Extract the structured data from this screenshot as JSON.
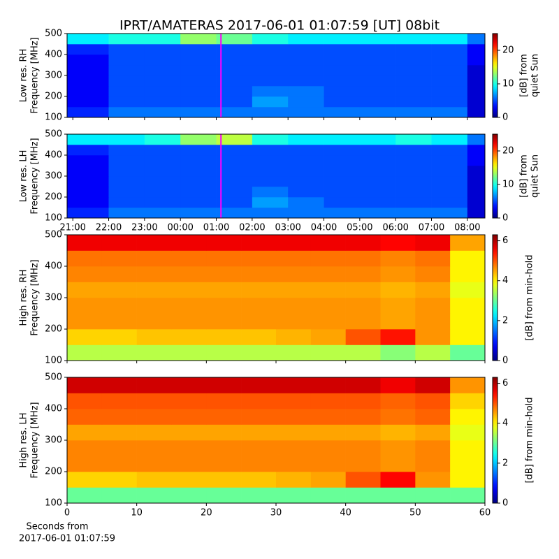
{
  "title": "IPRT/AMATERAS 2017-06-01 01:07:59 [UT]   08bit",
  "chart_data": [
    {
      "type": "heatmap",
      "colormap": "jet",
      "ylabel": [
        "Low res. RH",
        "Frequency [MHz]"
      ],
      "xlim": [
        20.84,
        32.49
      ],
      "xticks": [
        {
          "value": 21,
          "label": "21:00"
        },
        {
          "value": 22,
          "label": "22:00"
        },
        {
          "value": 23,
          "label": "23:00"
        },
        {
          "value": 24,
          "label": "00:00"
        },
        {
          "value": 25,
          "label": "01:00"
        },
        {
          "value": 26,
          "label": "02:00"
        },
        {
          "value": 27,
          "label": "03:00"
        },
        {
          "value": 28,
          "label": "04:00"
        },
        {
          "value": 29,
          "label": "05:00"
        },
        {
          "value": 30,
          "label": "06:00"
        },
        {
          "value": 31,
          "label": "07:00"
        },
        {
          "value": 32,
          "label": "08:00"
        }
      ],
      "show_xticklabels": false,
      "ylim": [
        100,
        500
      ],
      "yticks": [
        100,
        200,
        300,
        400,
        500
      ],
      "x_edges": [
        20.84,
        22,
        23,
        24,
        25,
        26,
        27,
        28,
        29,
        30,
        31,
        32,
        32.49
      ],
      "y_edges": [
        100,
        150,
        200,
        250,
        300,
        350,
        400,
        450,
        500
      ],
      "z": [
        [
          4,
          6,
          6,
          6,
          6,
          6,
          6,
          6,
          6,
          6,
          6,
          2
        ],
        [
          3,
          5,
          5,
          5,
          5,
          7,
          6,
          5,
          5,
          5,
          5,
          2
        ],
        [
          3,
          5,
          5,
          5,
          5,
          6,
          6,
          5,
          5,
          5,
          5,
          2
        ],
        [
          3,
          5,
          5,
          5,
          5,
          5,
          5,
          5,
          5,
          5,
          5,
          2
        ],
        [
          3,
          5,
          5,
          5,
          5,
          5,
          5,
          5,
          5,
          5,
          5,
          2
        ],
        [
          3,
          5,
          5,
          5,
          5,
          5,
          5,
          5,
          5,
          5,
          5,
          3
        ],
        [
          4,
          5,
          5,
          5,
          5,
          5,
          5,
          5,
          5,
          5,
          5,
          3
        ],
        [
          9,
          10,
          10,
          13,
          12,
          10,
          9,
          9,
          9,
          9,
          9,
          6
        ]
      ],
      "marker": {
        "x": 25.13,
        "color": "#ff00ff"
      },
      "colorbar": {
        "label": [
          "[dB] from",
          "quiet Sun"
        ],
        "lim": [
          0,
          25
        ],
        "ticks": [
          0,
          10,
          20
        ]
      }
    },
    {
      "type": "heatmap",
      "colormap": "jet",
      "ylabel": [
        "Low res. LH",
        "Frequency [MHz]"
      ],
      "xlim": [
        20.84,
        32.49
      ],
      "xticks": [
        {
          "value": 21,
          "label": "21:00"
        },
        {
          "value": 22,
          "label": "22:00"
        },
        {
          "value": 23,
          "label": "23:00"
        },
        {
          "value": 24,
          "label": "00:00"
        },
        {
          "value": 25,
          "label": "01:00"
        },
        {
          "value": 26,
          "label": "02:00"
        },
        {
          "value": 27,
          "label": "03:00"
        },
        {
          "value": 28,
          "label": "04:00"
        },
        {
          "value": 29,
          "label": "05:00"
        },
        {
          "value": 30,
          "label": "06:00"
        },
        {
          "value": 31,
          "label": "07:00"
        },
        {
          "value": 32,
          "label": "08:00"
        }
      ],
      "show_xticklabels": true,
      "ylim": [
        100,
        500
      ],
      "yticks": [
        100,
        200,
        300,
        400,
        500
      ],
      "x_edges": [
        20.84,
        22,
        23,
        24,
        25,
        26,
        27,
        28,
        29,
        30,
        31,
        32,
        32.49
      ],
      "y_edges": [
        100,
        150,
        200,
        250,
        300,
        350,
        400,
        450,
        500
      ],
      "z": [
        [
          4,
          6,
          6,
          6,
          6,
          6,
          6,
          6,
          6,
          6,
          6,
          2
        ],
        [
          3,
          5,
          5,
          5,
          5,
          7,
          6,
          5,
          5,
          5,
          5,
          2
        ],
        [
          3,
          5,
          5,
          5,
          5,
          6,
          5,
          5,
          5,
          5,
          5,
          2
        ],
        [
          3,
          5,
          5,
          5,
          5,
          5,
          5,
          5,
          5,
          5,
          5,
          2
        ],
        [
          3,
          5,
          5,
          5,
          5,
          5,
          5,
          5,
          5,
          5,
          5,
          2
        ],
        [
          3,
          5,
          5,
          5,
          5,
          5,
          5,
          5,
          5,
          5,
          5,
          3
        ],
        [
          4,
          5,
          5,
          5,
          5,
          5,
          5,
          5,
          5,
          5,
          5,
          3
        ],
        [
          9,
          9,
          10,
          13,
          14,
          10,
          9,
          9,
          9,
          10,
          9,
          6
        ]
      ],
      "marker": {
        "x": 25.13,
        "color": "#ff00ff"
      },
      "colorbar": {
        "label": [
          "[dB] from",
          "quiet Sun"
        ],
        "lim": [
          0,
          25
        ],
        "ticks": [
          0,
          10,
          20
        ]
      }
    },
    {
      "type": "heatmap",
      "colormap": "jet",
      "ylabel": [
        "High res. RH",
        "Frequency [MHz]"
      ],
      "xlim": [
        0,
        60
      ],
      "xticks": [
        0,
        10,
        20,
        30,
        40,
        50,
        60
      ],
      "show_xticklabels": false,
      "ylim": [
        100,
        500
      ],
      "yticks": [
        100,
        200,
        300,
        400,
        500
      ],
      "x_edges": [
        0,
        5,
        10,
        15,
        20,
        25,
        30,
        35,
        40,
        45,
        50,
        55,
        60
      ],
      "y_edges": [
        100,
        150,
        200,
        250,
        300,
        350,
        400,
        450,
        500
      ],
      "z": [
        [
          3.5,
          3.5,
          3.5,
          3.5,
          3.5,
          3.5,
          3.5,
          3.5,
          3.5,
          3.2,
          3.5,
          3
        ],
        [
          4.2,
          4.2,
          4.3,
          4.3,
          4.3,
          4.3,
          4.4,
          4.5,
          5,
          5.4,
          4.6,
          4
        ],
        [
          4.6,
          4.6,
          4.6,
          4.6,
          4.6,
          4.6,
          4.6,
          4.6,
          4.6,
          4.5,
          4.6,
          4
        ],
        [
          4.6,
          4.6,
          4.6,
          4.6,
          4.6,
          4.6,
          4.6,
          4.6,
          4.6,
          4.5,
          4.6,
          4
        ],
        [
          4.5,
          4.5,
          4.5,
          4.5,
          4.5,
          4.5,
          4.5,
          4.5,
          4.5,
          4.4,
          4.5,
          3.8
        ],
        [
          4.7,
          4.7,
          4.7,
          4.7,
          4.7,
          4.7,
          4.7,
          4.7,
          4.7,
          4.6,
          4.7,
          4
        ],
        [
          4.8,
          4.8,
          4.8,
          4.8,
          4.8,
          4.8,
          4.8,
          4.8,
          4.8,
          4.7,
          4.8,
          4
        ],
        [
          5.6,
          5.6,
          5.6,
          5.6,
          5.6,
          5.6,
          5.6,
          5.6,
          5.6,
          5.5,
          5.6,
          4.5
        ]
      ],
      "colorbar": {
        "label": [
          "[dB] from min-hold"
        ],
        "lim": [
          0,
          6.3
        ],
        "ticks": [
          0,
          2,
          4,
          6
        ]
      }
    },
    {
      "type": "heatmap",
      "colormap": "jet",
      "ylabel": [
        "High res. LH",
        "Frequency [MHz]"
      ],
      "xlabel": [
        "Seconds from",
        "2017-06-01 01:07:59"
      ],
      "xlim": [
        0,
        60
      ],
      "xticks": [
        0,
        10,
        20,
        30,
        40,
        50,
        60
      ],
      "show_xticklabels": true,
      "ylim": [
        100,
        500
      ],
      "yticks": [
        100,
        200,
        300,
        400,
        500
      ],
      "x_edges": [
        0,
        5,
        10,
        15,
        20,
        25,
        30,
        35,
        40,
        45,
        50,
        55,
        60
      ],
      "y_edges": [
        100,
        150,
        200,
        250,
        300,
        350,
        400,
        450,
        500
      ],
      "z": [
        [
          3,
          3,
          3,
          3,
          3,
          3,
          3,
          3,
          3,
          3,
          3,
          3
        ],
        [
          4.2,
          4.2,
          4.3,
          4.3,
          4.3,
          4.3,
          4.4,
          4.5,
          5,
          5.5,
          4.6,
          4
        ],
        [
          4.7,
          4.7,
          4.7,
          4.7,
          4.7,
          4.7,
          4.7,
          4.7,
          4.7,
          4.6,
          4.7,
          4
        ],
        [
          4.7,
          4.7,
          4.7,
          4.7,
          4.7,
          4.7,
          4.7,
          4.7,
          4.7,
          4.6,
          4.7,
          4
        ],
        [
          4.5,
          4.5,
          4.5,
          4.5,
          4.5,
          4.5,
          4.5,
          4.5,
          4.5,
          4.4,
          4.5,
          3.8
        ],
        [
          4.9,
          4.9,
          4.9,
          4.9,
          4.9,
          4.9,
          4.9,
          4.9,
          4.9,
          4.8,
          4.9,
          4
        ],
        [
          5,
          5,
          5,
          5,
          5,
          5,
          5,
          5,
          5,
          4.9,
          5,
          4.2
        ],
        [
          5.8,
          5.8,
          5.8,
          5.8,
          5.8,
          5.8,
          5.8,
          5.8,
          5.8,
          5.6,
          5.8,
          4.6
        ]
      ],
      "colorbar": {
        "label": [
          "[dB] from min-hold"
        ],
        "lim": [
          0,
          6.3
        ],
        "ticks": [
          0,
          2,
          4,
          6
        ]
      }
    }
  ]
}
